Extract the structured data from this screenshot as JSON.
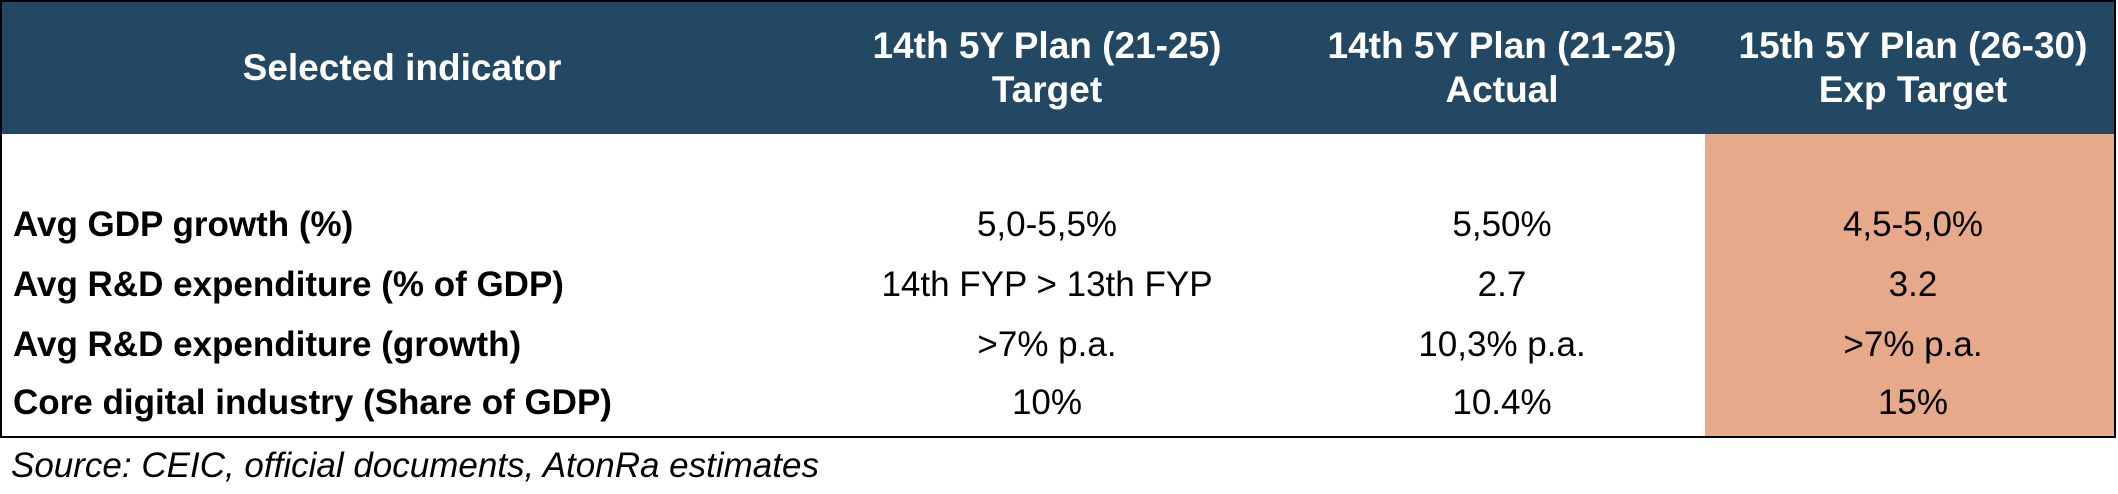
{
  "table": {
    "headers": [
      {
        "line1": "Selected indicator",
        "line2": ""
      },
      {
        "line1": "14th 5Y Plan (21-25)",
        "line2": "Target"
      },
      {
        "line1": "14th 5Y Plan (21-25)",
        "line2": "Actual"
      },
      {
        "line1": "15th 5Y Plan (26-30)",
        "line2": "Exp Target"
      }
    ],
    "rows": [
      {
        "label": "Avg GDP growth (%)",
        "target_14": "5,0-5,5%",
        "actual_14": "5,50%",
        "target_15": "4,5-5,0%"
      },
      {
        "label": "Avg R&D expenditure (% of GDP)",
        "target_14": "14th FYP > 13th FYP",
        "actual_14": "2.7",
        "target_15": "3.2"
      },
      {
        "label": "Avg R&D expenditure (growth)",
        "target_14": ">7% p.a.",
        "actual_14": "10,3% p.a.",
        "target_15": ">7% p.a."
      },
      {
        "label": "Core digital industry (Share of GDP)",
        "target_14": "10%",
        "actual_14": "10.4%",
        "target_15": "15%"
      }
    ]
  },
  "source": "Source: CEIC, official documents, AtonRa estimates",
  "colors": {
    "header_background": "#234863",
    "header_text": "#ffffff",
    "highlight_column": "#e6a98a",
    "border": "#000000"
  }
}
